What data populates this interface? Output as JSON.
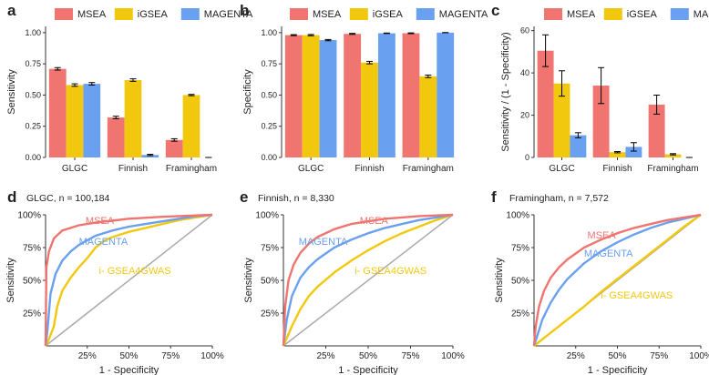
{
  "colors": {
    "MSEA": "#f07470",
    "iGSEA": "#f2c80f",
    "MAGENTA": "#6aa0f0",
    "diagonal": "#aaaaaa",
    "error": "#000000"
  },
  "chart_data": [
    {
      "panel": "a",
      "type": "bar",
      "legend": [
        "MSEA",
        "iGSEA",
        "MAGENTA"
      ],
      "legend_position": "top",
      "categories": [
        "GLGC",
        "Finnish",
        "Framingham"
      ],
      "ylabel": "Sensitivity",
      "ylim": [
        0,
        1.05
      ],
      "yticks": [
        0,
        0.25,
        0.5,
        0.75,
        1.0
      ],
      "ytick_labels": [
        "0.00",
        "0.25",
        "0.50",
        "0.75",
        "1.00"
      ],
      "series": [
        {
          "name": "MSEA",
          "values": [
            0.71,
            0.32,
            0.14
          ],
          "errors": [
            0.01,
            0.01,
            0.01
          ]
        },
        {
          "name": "iGSEA",
          "values": [
            0.58,
            0.62,
            0.5
          ],
          "errors": [
            0.01,
            0.01,
            0.005
          ]
        },
        {
          "name": "MAGENTA",
          "values": [
            0.59,
            0.02,
            0.0
          ],
          "errors": [
            0.01,
            0.005,
            0.0
          ]
        }
      ]
    },
    {
      "panel": "b",
      "type": "bar",
      "legend": [
        "MSEA",
        "iGSEA",
        "MAGENTA"
      ],
      "legend_position": "top",
      "categories": [
        "GLGC",
        "Finnish",
        "Framingham"
      ],
      "ylabel": "Specificity",
      "ylim": [
        0,
        1.05
      ],
      "yticks": [
        0,
        0.25,
        0.5,
        0.75,
        1.0
      ],
      "ytick_labels": [
        "0.00",
        "0.25",
        "0.50",
        "0.75",
        "1.00"
      ],
      "series": [
        {
          "name": "MSEA",
          "values": [
            0.98,
            0.99,
            0.995
          ],
          "errors": [
            0.004,
            0.004,
            0.003
          ]
        },
        {
          "name": "iGSEA",
          "values": [
            0.98,
            0.76,
            0.65
          ],
          "errors": [
            0.005,
            0.01,
            0.01
          ]
        },
        {
          "name": "MAGENTA",
          "values": [
            0.94,
            0.995,
            1.0
          ],
          "errors": [
            0.005,
            0.002,
            0.0
          ]
        }
      ]
    },
    {
      "panel": "c",
      "type": "bar",
      "legend": [
        "MSEA",
        "iGSEA",
        "MAGENTA"
      ],
      "legend_position": "top",
      "categories": [
        "GLGC",
        "Finnish",
        "Framingham"
      ],
      "ylabel": "Sensitivity / (1 - Specificity)",
      "ylim": [
        0,
        62
      ],
      "yticks": [
        0,
        20,
        40,
        60
      ],
      "ytick_labels": [
        "0",
        "20",
        "40",
        "60"
      ],
      "series": [
        {
          "name": "MSEA",
          "values": [
            50.5,
            34,
            25
          ],
          "errors": [
            7.5,
            8.5,
            4.5
          ]
        },
        {
          "name": "iGSEA",
          "values": [
            35,
            2.5,
            1.5
          ],
          "errors": [
            6,
            0.3,
            0.3
          ]
        },
        {
          "name": "MAGENTA",
          "values": [
            10.5,
            5,
            0
          ],
          "errors": [
            1.2,
            2,
            0
          ]
        }
      ]
    },
    {
      "panel": "d",
      "type": "line",
      "title": "GLGC, n = 100,184",
      "xlabel": "1 - Specificity",
      "ylabel": "Sensitivity",
      "xlim": [
        0,
        1
      ],
      "ylim": [
        0,
        1
      ],
      "xtick_labels": [
        "25%",
        "50%",
        "75%",
        "100%"
      ],
      "ytick_labels": [
        "25%",
        "50%",
        "75%",
        "100%"
      ],
      "annotations": [
        "MSEA",
        "MAGENTA",
        "i- GSEA4GWAS"
      ],
      "series": [
        {
          "name": "MSEA",
          "x": [
            0,
            0.005,
            0.02,
            0.05,
            0.1,
            0.2,
            0.3,
            0.5,
            0.7,
            0.9,
            1.0
          ],
          "y": [
            0,
            0.6,
            0.72,
            0.82,
            0.88,
            0.92,
            0.94,
            0.97,
            0.985,
            0.995,
            1.0
          ]
        },
        {
          "name": "MAGENTA",
          "x": [
            0,
            0.01,
            0.03,
            0.06,
            0.1,
            0.15,
            0.2,
            0.3,
            0.4,
            0.5,
            0.6,
            0.7,
            0.8,
            0.9,
            1.0
          ],
          "y": [
            0,
            0.1,
            0.4,
            0.55,
            0.65,
            0.72,
            0.77,
            0.84,
            0.88,
            0.91,
            0.93,
            0.95,
            0.97,
            0.99,
            1.0
          ]
        },
        {
          "name": "i- GSEA4GWAS",
          "x": [
            0,
            0.02,
            0.05,
            0.07,
            0.1,
            0.15,
            0.2,
            0.25,
            0.3,
            0.35,
            0.4,
            0.5,
            0.6,
            0.7,
            0.8,
            0.9,
            1.0
          ],
          "y": [
            0,
            0.05,
            0.15,
            0.3,
            0.42,
            0.52,
            0.6,
            0.67,
            0.75,
            0.8,
            0.83,
            0.87,
            0.9,
            0.93,
            0.96,
            0.98,
            1.0
          ]
        }
      ]
    },
    {
      "panel": "e",
      "type": "line",
      "title": "Finnish, n = 8,330",
      "xlabel": "1 - Specificity",
      "ylabel": "Sensitivity",
      "xlim": [
        0,
        1
      ],
      "ylim": [
        0,
        1
      ],
      "xtick_labels": [
        "25%",
        "50%",
        "75%",
        "100%"
      ],
      "ytick_labels": [
        "25%",
        "50%",
        "75%",
        "100%"
      ],
      "annotations": [
        "MSEA",
        "MAGENTA",
        "i- GSEA4GWAS"
      ],
      "series": [
        {
          "name": "MSEA",
          "x": [
            0,
            0.01,
            0.03,
            0.06,
            0.1,
            0.15,
            0.2,
            0.3,
            0.4,
            0.5,
            0.6,
            0.7,
            0.8,
            0.9,
            1.0
          ],
          "y": [
            0,
            0.3,
            0.5,
            0.62,
            0.71,
            0.78,
            0.83,
            0.89,
            0.93,
            0.95,
            0.97,
            0.98,
            0.99,
            0.995,
            1.0
          ]
        },
        {
          "name": "MAGENTA",
          "x": [
            0,
            0.02,
            0.05,
            0.1,
            0.15,
            0.2,
            0.3,
            0.4,
            0.5,
            0.6,
            0.7,
            0.8,
            0.9,
            1.0
          ],
          "y": [
            0,
            0.2,
            0.38,
            0.52,
            0.6,
            0.66,
            0.75,
            0.81,
            0.86,
            0.9,
            0.93,
            0.96,
            0.98,
            1.0
          ]
        },
        {
          "name": "i- GSEA4GWAS",
          "x": [
            0,
            0.05,
            0.1,
            0.15,
            0.2,
            0.3,
            0.4,
            0.5,
            0.6,
            0.7,
            0.8,
            0.9,
            1.0
          ],
          "y": [
            0,
            0.15,
            0.28,
            0.38,
            0.45,
            0.56,
            0.65,
            0.73,
            0.8,
            0.86,
            0.91,
            0.96,
            1.0
          ]
        }
      ]
    },
    {
      "panel": "f",
      "type": "line",
      "title": "Framingham, n = 7,572",
      "xlabel": "1 - Specificity",
      "ylabel": "Sensitivity",
      "xlim": [
        0,
        1
      ],
      "ylim": [
        0,
        1
      ],
      "xtick_labels": [
        "25%",
        "50%",
        "75%",
        "100%"
      ],
      "ytick_labels": [
        "25%",
        "50%",
        "75%",
        "100%"
      ],
      "annotations": [
        "MSEA",
        "MAGENTA",
        "i- GSEA4GWAS"
      ],
      "series": [
        {
          "name": "MSEA",
          "x": [
            0,
            0.01,
            0.03,
            0.06,
            0.1,
            0.15,
            0.2,
            0.3,
            0.4,
            0.5,
            0.6,
            0.7,
            0.8,
            0.9,
            1.0
          ],
          "y": [
            0,
            0.15,
            0.3,
            0.42,
            0.52,
            0.6,
            0.66,
            0.75,
            0.81,
            0.86,
            0.9,
            0.93,
            0.96,
            0.98,
            1.0
          ]
        },
        {
          "name": "MAGENTA",
          "x": [
            0,
            0.02,
            0.05,
            0.1,
            0.15,
            0.2,
            0.3,
            0.4,
            0.5,
            0.6,
            0.7,
            0.8,
            0.9,
            1.0
          ],
          "y": [
            0,
            0.08,
            0.2,
            0.33,
            0.43,
            0.51,
            0.63,
            0.72,
            0.79,
            0.85,
            0.9,
            0.94,
            0.97,
            1.0
          ]
        },
        {
          "name": "i- GSEA4GWAS",
          "x": [
            0,
            0.1,
            0.2,
            0.3,
            0.4,
            0.5,
            0.6,
            0.7,
            0.8,
            0.9,
            1.0
          ],
          "y": [
            0,
            0.1,
            0.2,
            0.3,
            0.41,
            0.51,
            0.61,
            0.71,
            0.81,
            0.91,
            1.0
          ]
        }
      ]
    }
  ]
}
